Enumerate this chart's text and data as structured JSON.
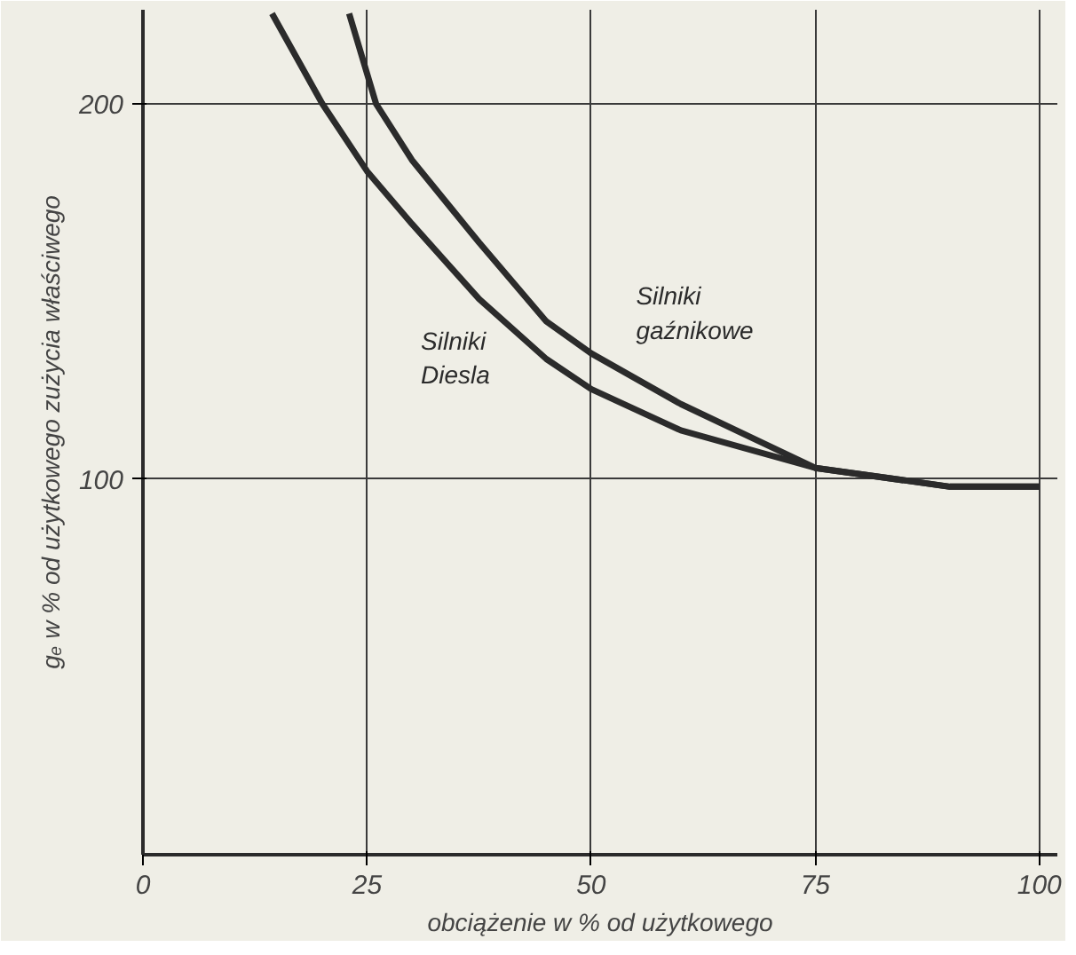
{
  "chart_data": {
    "type": "line",
    "xlabel": "obciążenie w % od użytkowego",
    "ylabel": "gₑ w % od użytkowego zużycia właściwego",
    "xlim": [
      0,
      102
    ],
    "ylim": [
      0,
      225
    ],
    "xticks": [
      0,
      25,
      50,
      75,
      100
    ],
    "yticks": [
      100,
      200
    ],
    "grid": true,
    "line_style": "solid",
    "series": [
      {
        "name": "Silniki gaźnikowe",
        "color": "#2b2b2b",
        "x": [
          23,
          26,
          30,
          37.5,
          45,
          50,
          60,
          75,
          90,
          100
        ],
        "values": [
          224,
          200,
          185,
          163,
          142,
          133.5,
          120,
          103,
          98,
          98
        ]
      },
      {
        "name": "Silniki Diesla",
        "color": "#2b2b2b",
        "x": [
          14.4,
          20,
          25,
          30,
          37.5,
          45,
          50,
          60,
          75,
          90,
          100
        ],
        "values": [
          224,
          200,
          182,
          168,
          148,
          132,
          124,
          113,
          103,
          98,
          98
        ]
      }
    ]
  }
}
